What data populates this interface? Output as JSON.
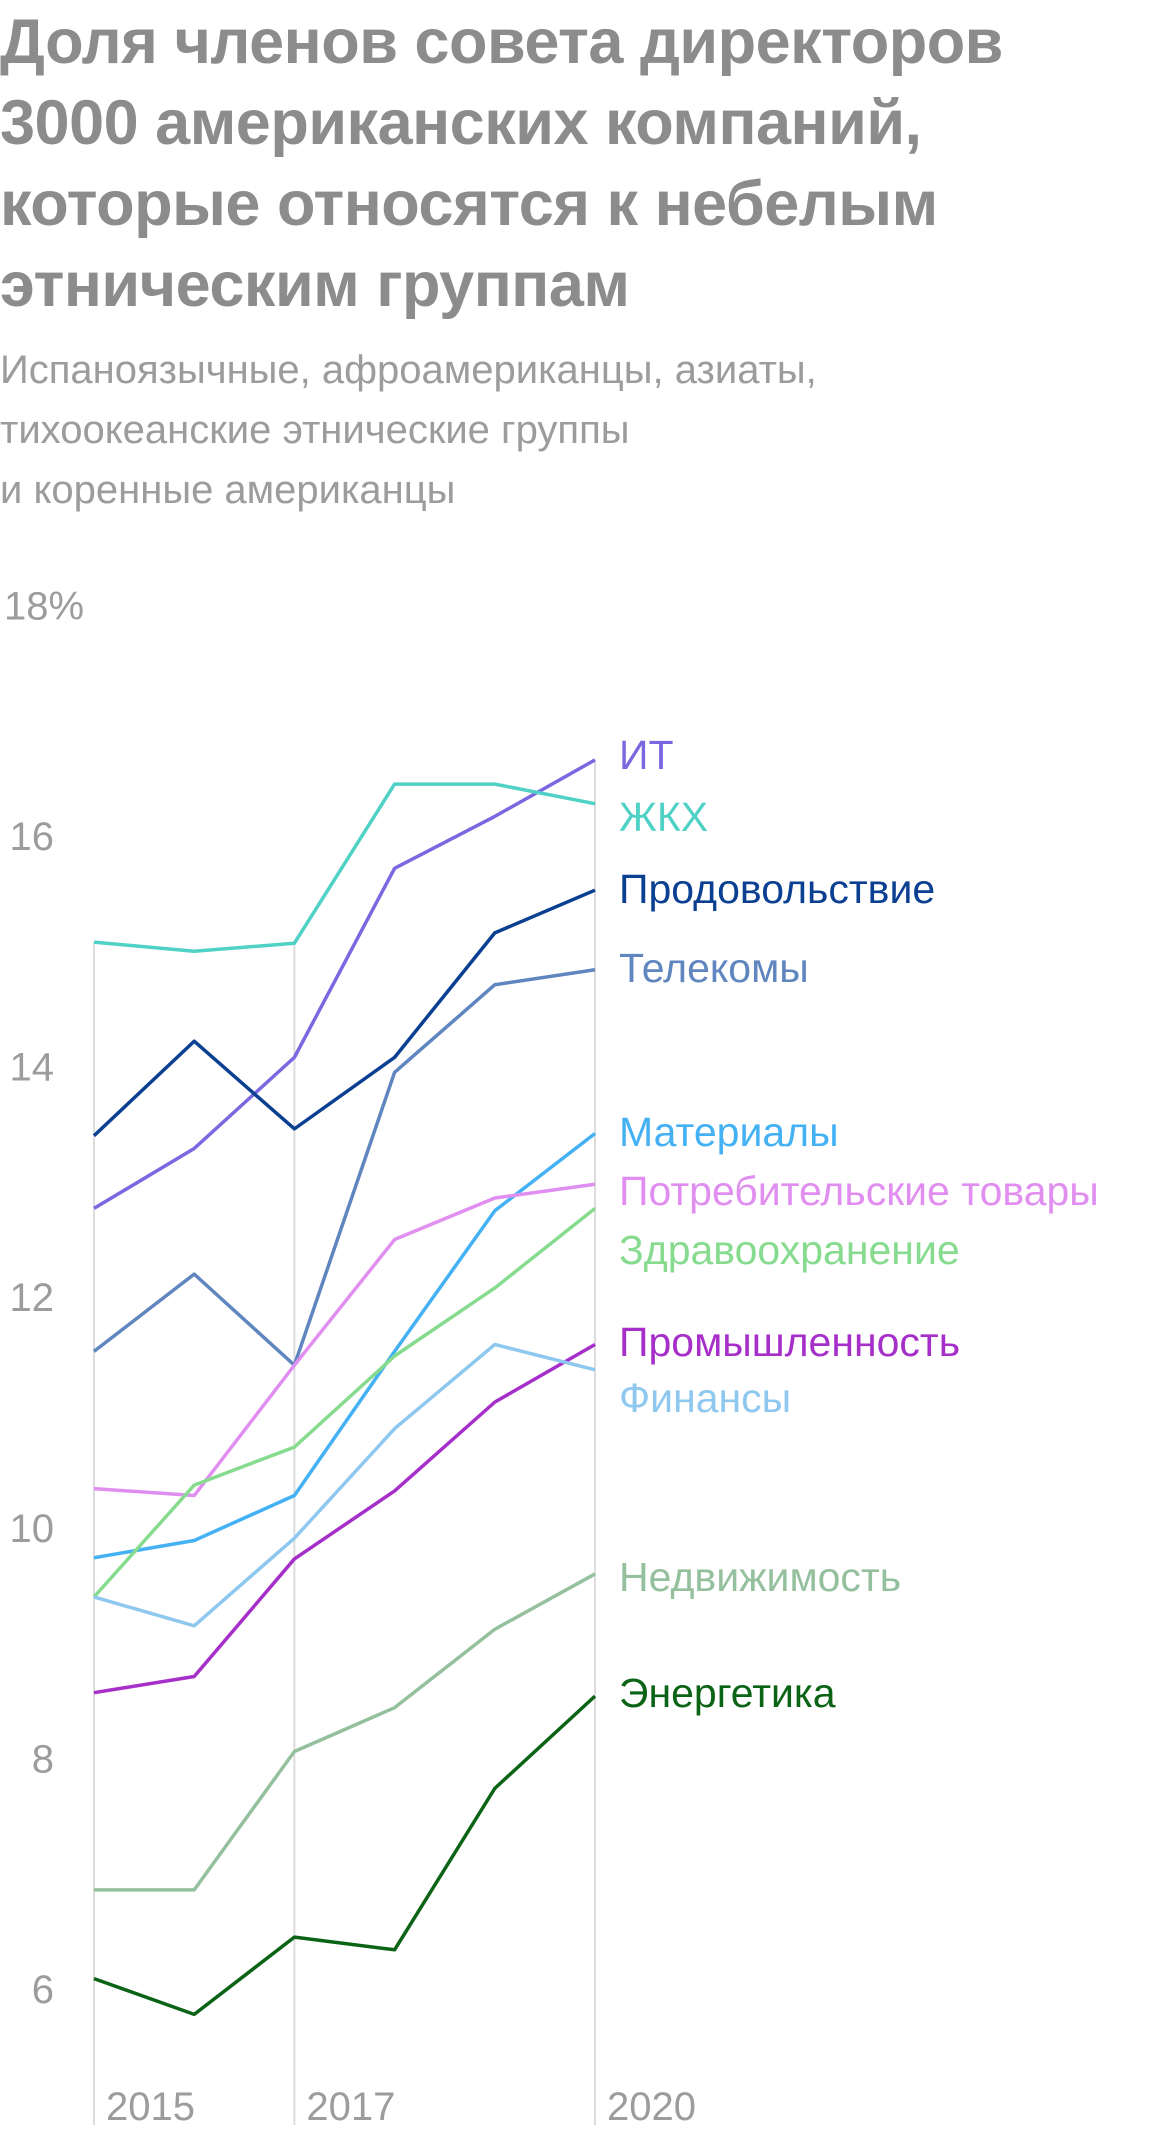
{
  "title": "Доля членов совета директоров 3000 американских компаний, которые относятся к небелым этническим группам",
  "subtitle_lines": [
    "Испаноязычные, афроамериканцы, азиаты,",
    "тихоокеанские этнические группы",
    "и коренные американцы"
  ],
  "chart_data": {
    "type": "line",
    "title": "Доля членов совета директоров 3000 американских компаний, которые относятся к небелым этническим группам",
    "x": [
      2015,
      2016,
      2017,
      2018,
      2019,
      2020
    ],
    "x_tick_labels": [
      "2015",
      "2017",
      "2020"
    ],
    "x_ticks": [
      2015,
      2017,
      2020
    ],
    "y_tick_labels": [
      "18%",
      "16",
      "14",
      "12",
      "10",
      "8",
      "6"
    ],
    "y_ticks": [
      18,
      16,
      14,
      12,
      10,
      8,
      6
    ],
    "ylim": [
      6,
      18
    ],
    "grid": "vertical at 2015, 2017, 2020",
    "legend": "direct labels at line ends (right)",
    "series": [
      {
        "name": "ИТ",
        "color": "#7b68e0",
        "values": [
          12.77,
          13.29,
          14.08,
          15.72,
          16.17,
          16.66
        ]
      },
      {
        "name": "ЖКХ",
        "color": "#4fd1c5",
        "values": [
          15.08,
          15.0,
          15.07,
          16.45,
          16.45,
          16.28
        ]
      },
      {
        "name": "Продовольствие",
        "color": "#0a3f91",
        "values": [
          13.4,
          14.22,
          13.46,
          14.08,
          15.16,
          15.53
        ]
      },
      {
        "name": "Телекомы",
        "color": "#5f86bf",
        "values": [
          11.53,
          12.2,
          11.41,
          13.95,
          14.71,
          14.84
        ]
      },
      {
        "name": "Материалы",
        "color": "#45b1f5",
        "values": [
          9.74,
          9.89,
          10.28,
          11.53,
          12.75,
          13.42
        ]
      },
      {
        "name": "Потребительские товары",
        "color": "#e08ff0",
        "values": [
          10.34,
          10.28,
          11.41,
          12.5,
          12.86,
          12.98
        ]
      },
      {
        "name": "Здравоохранение",
        "color": "#86db8e",
        "values": [
          9.4,
          10.37,
          10.7,
          11.49,
          12.08,
          12.77
        ]
      },
      {
        "name": "Промышленность",
        "color": "#a62fc9",
        "values": [
          8.57,
          8.71,
          9.73,
          10.32,
          11.09,
          11.59
        ]
      },
      {
        "name": "Финансы",
        "color": "#8ec8ef",
        "values": [
          9.4,
          9.15,
          9.91,
          10.86,
          11.59,
          11.37
        ]
      },
      {
        "name": "Недвижимость",
        "color": "#95c09e",
        "values": [
          6.86,
          6.86,
          8.06,
          8.44,
          9.12,
          9.6
        ]
      },
      {
        "name": "Энергетика",
        "color": "#0b6316",
        "values": [
          6.09,
          5.78,
          6.45,
          6.34,
          7.74,
          8.54
        ]
      }
    ]
  }
}
